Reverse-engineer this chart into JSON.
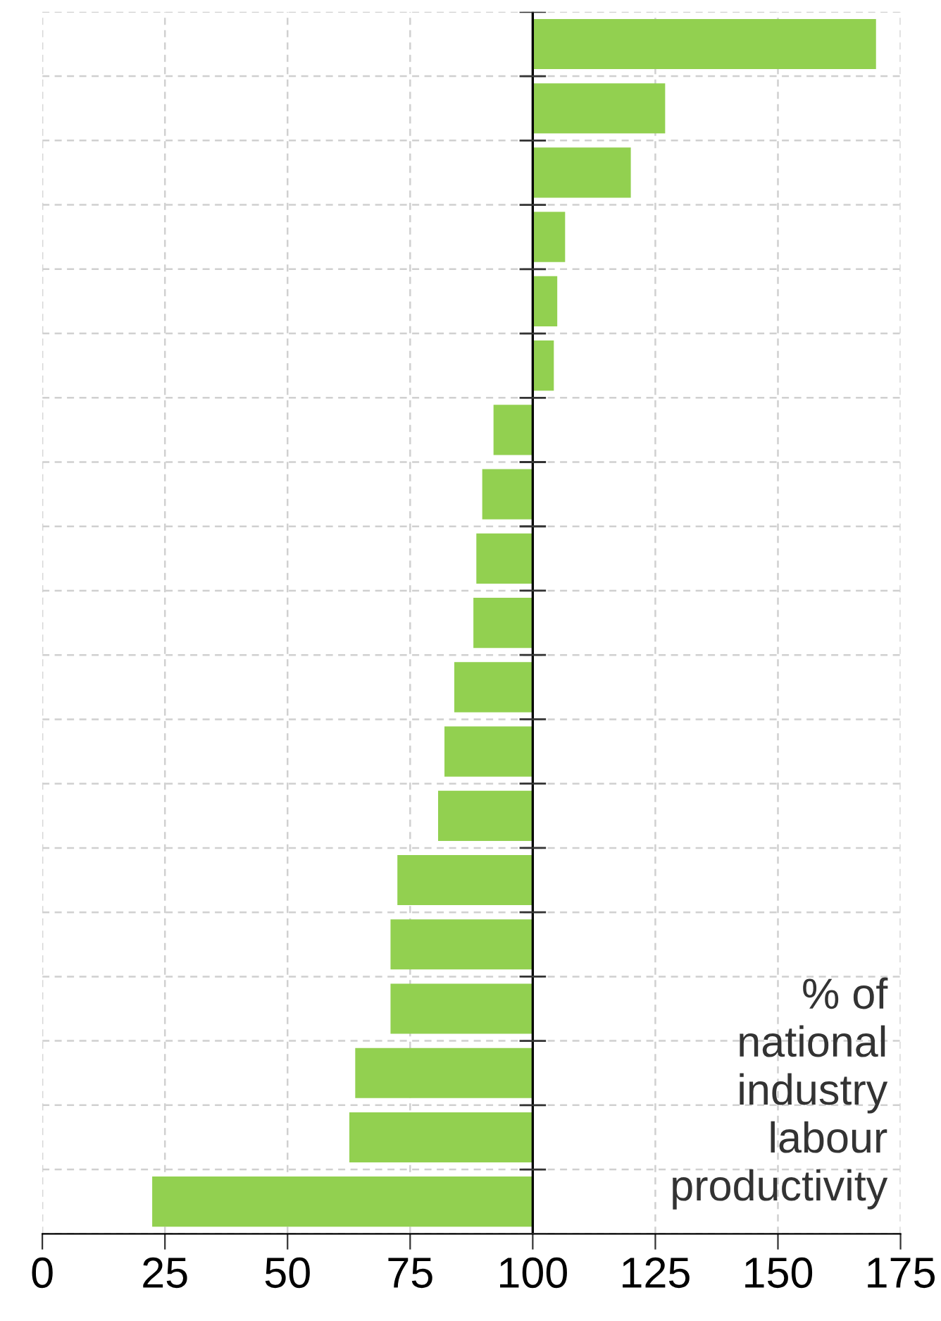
{
  "chart_data": {
    "type": "bar",
    "orientation": "horizontal",
    "categories": [
      null,
      null,
      null,
      null,
      null,
      null,
      null,
      null,
      null,
      null,
      null,
      null,
      null,
      null,
      null,
      null,
      null,
      null,
      null
    ],
    "base": [
      100,
      100,
      100,
      100,
      100,
      100,
      100,
      100,
      100,
      100,
      100,
      100,
      100,
      100,
      100,
      100,
      100,
      100,
      100
    ],
    "values": [
      70,
      27,
      20,
      6.6,
      5,
      4.3,
      -8,
      -10.3,
      -11.5,
      -12.1,
      -16,
      -18,
      -19.3,
      -27.6,
      -29,
      -29,
      -36.2,
      -37.4,
      -77.6
    ],
    "color": "#92d050",
    "xlim": [
      0,
      175
    ],
    "xticks": [
      0,
      25,
      50,
      75,
      100,
      125,
      150,
      175
    ],
    "grid": true,
    "ref_lines": [
      {
        "axis": "x",
        "value": 100,
        "color": "#000000"
      }
    ],
    "annotations": [
      "% of\nnational\nindustry\nlabour\nproductivity"
    ]
  }
}
